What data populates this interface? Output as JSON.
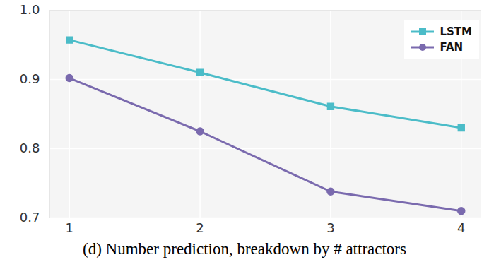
{
  "chart_data": {
    "type": "line",
    "title": "(d) Number prediction, breakdown by # attractors",
    "x": [
      1,
      2,
      3,
      4
    ],
    "series": [
      {
        "name": "LSTM",
        "color": "#4bbcc8",
        "marker": "square",
        "values": [
          0.957,
          0.91,
          0.861,
          0.83
        ]
      },
      {
        "name": "FAN",
        "color": "#7a6aae",
        "marker": "circle",
        "values": [
          0.902,
          0.825,
          0.738,
          0.71
        ]
      }
    ],
    "xlim": [
      0.85,
      4.15
    ],
    "xticks": [
      1,
      2,
      3,
      4
    ],
    "ylim": [
      0.7,
      1.0
    ],
    "yticks": [
      0.7,
      0.8,
      0.9,
      {
        "value": 1.0,
        "label": "1.0"
      }
    ],
    "grid": true,
    "legend": "upper right"
  }
}
